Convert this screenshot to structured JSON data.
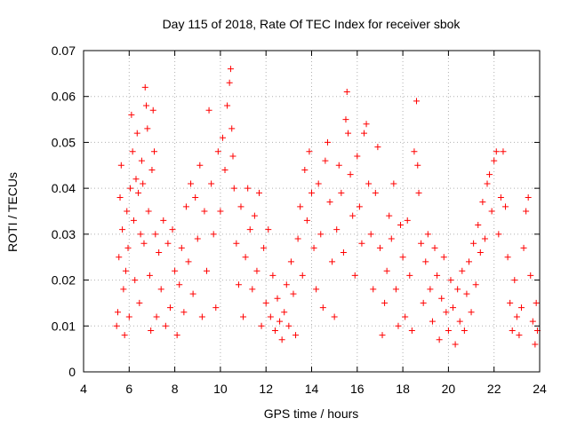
{
  "chart_data": {
    "type": "scatter",
    "title": "Day 115 of 2018, Rate Of TEC Index for receiver sbok",
    "xlabel": "GPS time / hours",
    "ylabel": "ROTI / TECUs",
    "xlim": [
      4,
      24
    ],
    "ylim": [
      0,
      0.07
    ],
    "xticks": [
      "4",
      "6",
      "8",
      "10",
      "12",
      "14",
      "16",
      "18",
      "20",
      "22",
      "24"
    ],
    "yticks": [
      "0",
      "0.01",
      "0.02",
      "0.03",
      "0.04",
      "0.05",
      "0.06",
      "0.07"
    ],
    "grid": true,
    "marker": "+",
    "color": "#ff0000",
    "series": [
      {
        "points": [
          [
            5.45,
            0.01
          ],
          [
            5.5,
            0.013
          ],
          [
            5.55,
            0.025
          ],
          [
            5.6,
            0.038
          ],
          [
            5.65,
            0.045
          ],
          [
            5.7,
            0.031
          ],
          [
            5.75,
            0.018
          ],
          [
            5.8,
            0.008
          ],
          [
            5.85,
            0.022
          ],
          [
            5.9,
            0.035
          ],
          [
            5.95,
            0.027
          ],
          [
            6.0,
            0.012
          ],
          [
            6.05,
            0.04
          ],
          [
            6.1,
            0.056
          ],
          [
            6.15,
            0.048
          ],
          [
            6.2,
            0.033
          ],
          [
            6.25,
            0.02
          ],
          [
            6.3,
            0.042
          ],
          [
            6.35,
            0.052
          ],
          [
            6.4,
            0.039
          ],
          [
            6.45,
            0.015
          ],
          [
            6.5,
            0.03
          ],
          [
            6.55,
            0.046
          ],
          [
            6.6,
            0.041
          ],
          [
            6.65,
            0.028
          ],
          [
            6.7,
            0.062
          ],
          [
            6.75,
            0.058
          ],
          [
            6.8,
            0.053
          ],
          [
            6.85,
            0.035
          ],
          [
            6.9,
            0.021
          ],
          [
            6.95,
            0.009
          ],
          [
            7.0,
            0.044
          ],
          [
            7.05,
            0.057
          ],
          [
            7.1,
            0.048
          ],
          [
            7.15,
            0.03
          ],
          [
            7.2,
            0.012
          ],
          [
            7.3,
            0.026
          ],
          [
            7.4,
            0.018
          ],
          [
            7.5,
            0.033
          ],
          [
            7.6,
            0.01
          ],
          [
            7.7,
            0.028
          ],
          [
            7.8,
            0.014
          ],
          [
            7.9,
            0.031
          ],
          [
            8.0,
            0.022
          ],
          [
            8.1,
            0.008
          ],
          [
            8.2,
            0.019
          ],
          [
            8.3,
            0.027
          ],
          [
            8.4,
            0.013
          ],
          [
            8.5,
            0.036
          ],
          [
            8.6,
            0.024
          ],
          [
            8.7,
            0.041
          ],
          [
            8.8,
            0.017
          ],
          [
            8.9,
            0.038
          ],
          [
            9.0,
            0.029
          ],
          [
            9.1,
            0.045
          ],
          [
            9.2,
            0.012
          ],
          [
            9.3,
            0.035
          ],
          [
            9.4,
            0.022
          ],
          [
            9.5,
            0.057
          ],
          [
            9.6,
            0.041
          ],
          [
            9.7,
            0.03
          ],
          [
            9.8,
            0.014
          ],
          [
            9.9,
            0.048
          ],
          [
            10.0,
            0.035
          ],
          [
            10.1,
            0.051
          ],
          [
            10.2,
            0.044
          ],
          [
            10.3,
            0.058
          ],
          [
            10.4,
            0.063
          ],
          [
            10.45,
            0.066
          ],
          [
            10.5,
            0.053
          ],
          [
            10.55,
            0.047
          ],
          [
            10.6,
            0.04
          ],
          [
            10.7,
            0.028
          ],
          [
            10.8,
            0.019
          ],
          [
            10.9,
            0.036
          ],
          [
            11.0,
            0.012
          ],
          [
            11.1,
            0.025
          ],
          [
            11.2,
            0.04
          ],
          [
            11.3,
            0.031
          ],
          [
            11.4,
            0.018
          ],
          [
            11.5,
            0.034
          ],
          [
            11.6,
            0.022
          ],
          [
            11.7,
            0.039
          ],
          [
            11.8,
            0.01
          ],
          [
            11.9,
            0.027
          ],
          [
            12.0,
            0.015
          ],
          [
            12.1,
            0.031
          ],
          [
            12.2,
            0.012
          ],
          [
            12.3,
            0.021
          ],
          [
            12.4,
            0.009
          ],
          [
            12.5,
            0.016
          ],
          [
            12.6,
            0.011
          ],
          [
            12.7,
            0.007
          ],
          [
            12.8,
            0.013
          ],
          [
            12.9,
            0.019
          ],
          [
            13.0,
            0.01
          ],
          [
            13.1,
            0.024
          ],
          [
            13.2,
            0.017
          ],
          [
            13.3,
            0.008
          ],
          [
            13.4,
            0.029
          ],
          [
            13.5,
            0.036
          ],
          [
            13.6,
            0.021
          ],
          [
            13.7,
            0.044
          ],
          [
            13.8,
            0.033
          ],
          [
            13.9,
            0.048
          ],
          [
            14.0,
            0.039
          ],
          [
            14.1,
            0.027
          ],
          [
            14.2,
            0.018
          ],
          [
            14.3,
            0.041
          ],
          [
            14.4,
            0.03
          ],
          [
            14.5,
            0.014
          ],
          [
            14.6,
            0.046
          ],
          [
            14.7,
            0.05
          ],
          [
            14.8,
            0.037
          ],
          [
            14.9,
            0.024
          ],
          [
            15.0,
            0.012
          ],
          [
            15.1,
            0.031
          ],
          [
            15.2,
            0.045
          ],
          [
            15.3,
            0.039
          ],
          [
            15.4,
            0.026
          ],
          [
            15.5,
            0.055
          ],
          [
            15.55,
            0.061
          ],
          [
            15.6,
            0.052
          ],
          [
            15.7,
            0.043
          ],
          [
            15.8,
            0.034
          ],
          [
            15.9,
            0.021
          ],
          [
            16.0,
            0.047
          ],
          [
            16.1,
            0.036
          ],
          [
            16.2,
            0.028
          ],
          [
            16.3,
            0.052
          ],
          [
            16.4,
            0.054
          ],
          [
            16.5,
            0.041
          ],
          [
            16.6,
            0.03
          ],
          [
            16.7,
            0.018
          ],
          [
            16.8,
            0.039
          ],
          [
            16.9,
            0.049
          ],
          [
            17.0,
            0.027
          ],
          [
            17.1,
            0.008
          ],
          [
            17.2,
            0.015
          ],
          [
            17.3,
            0.022
          ],
          [
            17.4,
            0.034
          ],
          [
            17.5,
            0.029
          ],
          [
            17.6,
            0.041
          ],
          [
            17.7,
            0.018
          ],
          [
            17.8,
            0.01
          ],
          [
            17.9,
            0.032
          ],
          [
            18.0,
            0.025
          ],
          [
            18.1,
            0.012
          ],
          [
            18.2,
            0.033
          ],
          [
            18.3,
            0.021
          ],
          [
            18.4,
            0.009
          ],
          [
            18.5,
            0.048
          ],
          [
            18.6,
            0.059
          ],
          [
            18.65,
            0.045
          ],
          [
            18.7,
            0.039
          ],
          [
            18.8,
            0.028
          ],
          [
            18.9,
            0.015
          ],
          [
            19.0,
            0.024
          ],
          [
            19.1,
            0.03
          ],
          [
            19.2,
            0.018
          ],
          [
            19.3,
            0.011
          ],
          [
            19.4,
            0.027
          ],
          [
            19.5,
            0.021
          ],
          [
            19.6,
            0.007
          ],
          [
            19.7,
            0.016
          ],
          [
            19.8,
            0.025
          ],
          [
            19.9,
            0.013
          ],
          [
            20.0,
            0.009
          ],
          [
            20.1,
            0.02
          ],
          [
            20.2,
            0.014
          ],
          [
            20.3,
            0.006
          ],
          [
            20.4,
            0.018
          ],
          [
            20.5,
            0.011
          ],
          [
            20.6,
            0.022
          ],
          [
            20.7,
            0.009
          ],
          [
            20.8,
            0.017
          ],
          [
            20.9,
            0.024
          ],
          [
            21.0,
            0.013
          ],
          [
            21.1,
            0.028
          ],
          [
            21.2,
            0.019
          ],
          [
            21.3,
            0.032
          ],
          [
            21.4,
            0.026
          ],
          [
            21.5,
            0.037
          ],
          [
            21.6,
            0.029
          ],
          [
            21.7,
            0.041
          ],
          [
            21.8,
            0.043
          ],
          [
            21.9,
            0.035
          ],
          [
            22.0,
            0.046
          ],
          [
            22.1,
            0.048
          ],
          [
            22.2,
            0.03
          ],
          [
            22.3,
            0.038
          ],
          [
            22.4,
            0.048
          ],
          [
            22.5,
            0.036
          ],
          [
            22.6,
            0.025
          ],
          [
            22.7,
            0.015
          ],
          [
            22.8,
            0.009
          ],
          [
            22.9,
            0.02
          ],
          [
            23.0,
            0.012
          ],
          [
            23.1,
            0.008
          ],
          [
            23.2,
            0.014
          ],
          [
            23.3,
            0.027
          ],
          [
            23.4,
            0.035
          ],
          [
            23.5,
            0.038
          ],
          [
            23.6,
            0.021
          ],
          [
            23.7,
            0.011
          ],
          [
            23.8,
            0.006
          ],
          [
            23.85,
            0.015
          ],
          [
            23.9,
            0.009
          ]
        ]
      }
    ]
  }
}
